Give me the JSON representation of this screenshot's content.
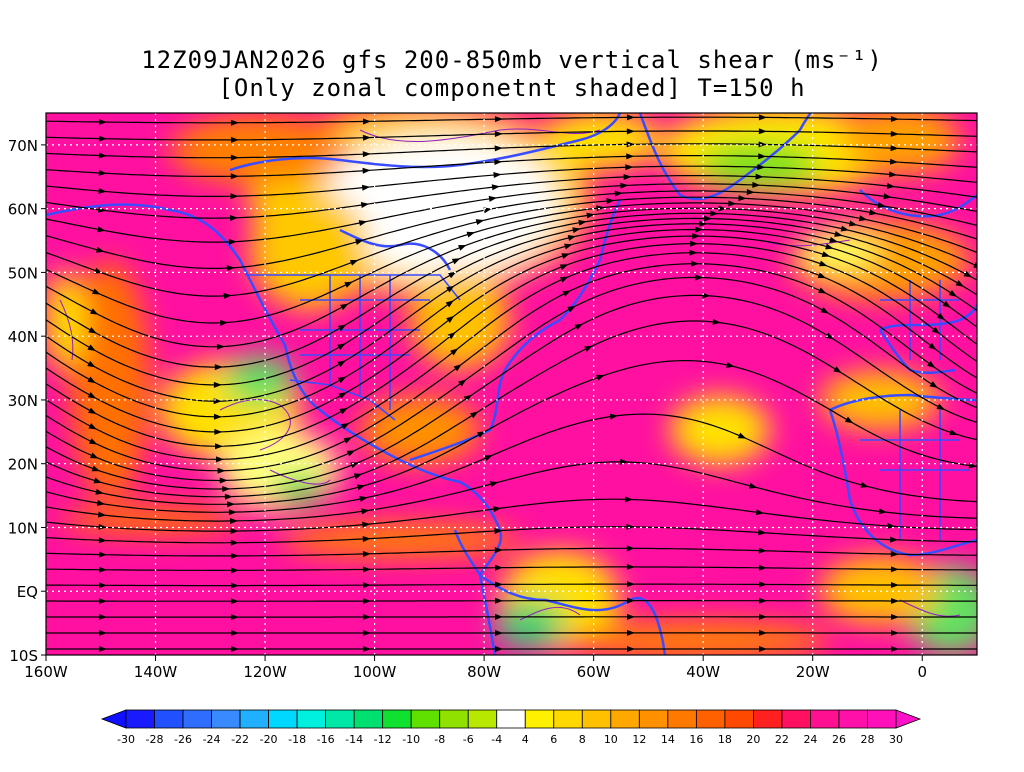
{
  "title_line1": "12Z09JAN2026 gfs 200-850mb vertical shear (ms⁻¹)",
  "title_line2": "[Only zonal componetnt shaded] T=150 h",
  "axes": {
    "lon_labels": [
      "160W",
      "140W",
      "120W",
      "100W",
      "80W",
      "60W",
      "40W",
      "20W",
      "0"
    ],
    "lon_values": [
      -160,
      -140,
      -120,
      -100,
      -80,
      -60,
      -40,
      -20,
      0
    ],
    "lat_labels": [
      "70N",
      "60N",
      "50N",
      "40N",
      "30N",
      "20N",
      "10N",
      "EQ",
      "10S"
    ],
    "lat_values": [
      70,
      60,
      50,
      40,
      30,
      20,
      10,
      0,
      -10
    ],
    "lon_range": [
      -160,
      10
    ],
    "lat_range": [
      -10,
      75
    ],
    "grid": "dotted"
  },
  "colorbar": {
    "tick_labels": [
      "-30",
      "-28",
      "-26",
      "-24",
      "-22",
      "-20",
      "-18",
      "-16",
      "-14",
      "-12",
      "-10",
      "-8",
      "-6",
      "-4",
      "4",
      "6",
      "8",
      "10",
      "12",
      "14",
      "16",
      "18",
      "20",
      "22",
      "24",
      "26",
      "28",
      "30"
    ],
    "colors": [
      "#1a1aff",
      "#2050ff",
      "#2f6dff",
      "#3a8aff",
      "#20b0ff",
      "#00d8ff",
      "#00f0e0",
      "#00e8a8",
      "#00e070",
      "#10e030",
      "#60e000",
      "#90e000",
      "#b8e800",
      "#ffffff",
      "#fff000",
      "#ffd800",
      "#ffc000",
      "#ffa800",
      "#ff9000",
      "#ff7800",
      "#ff6000",
      "#ff4800",
      "#ff2020",
      "#ff1060",
      "#ff1090",
      "#ff10a8",
      "#ff10b8"
    ],
    "under_color": "#1010ff",
    "over_color": "#ff10c8"
  }
}
